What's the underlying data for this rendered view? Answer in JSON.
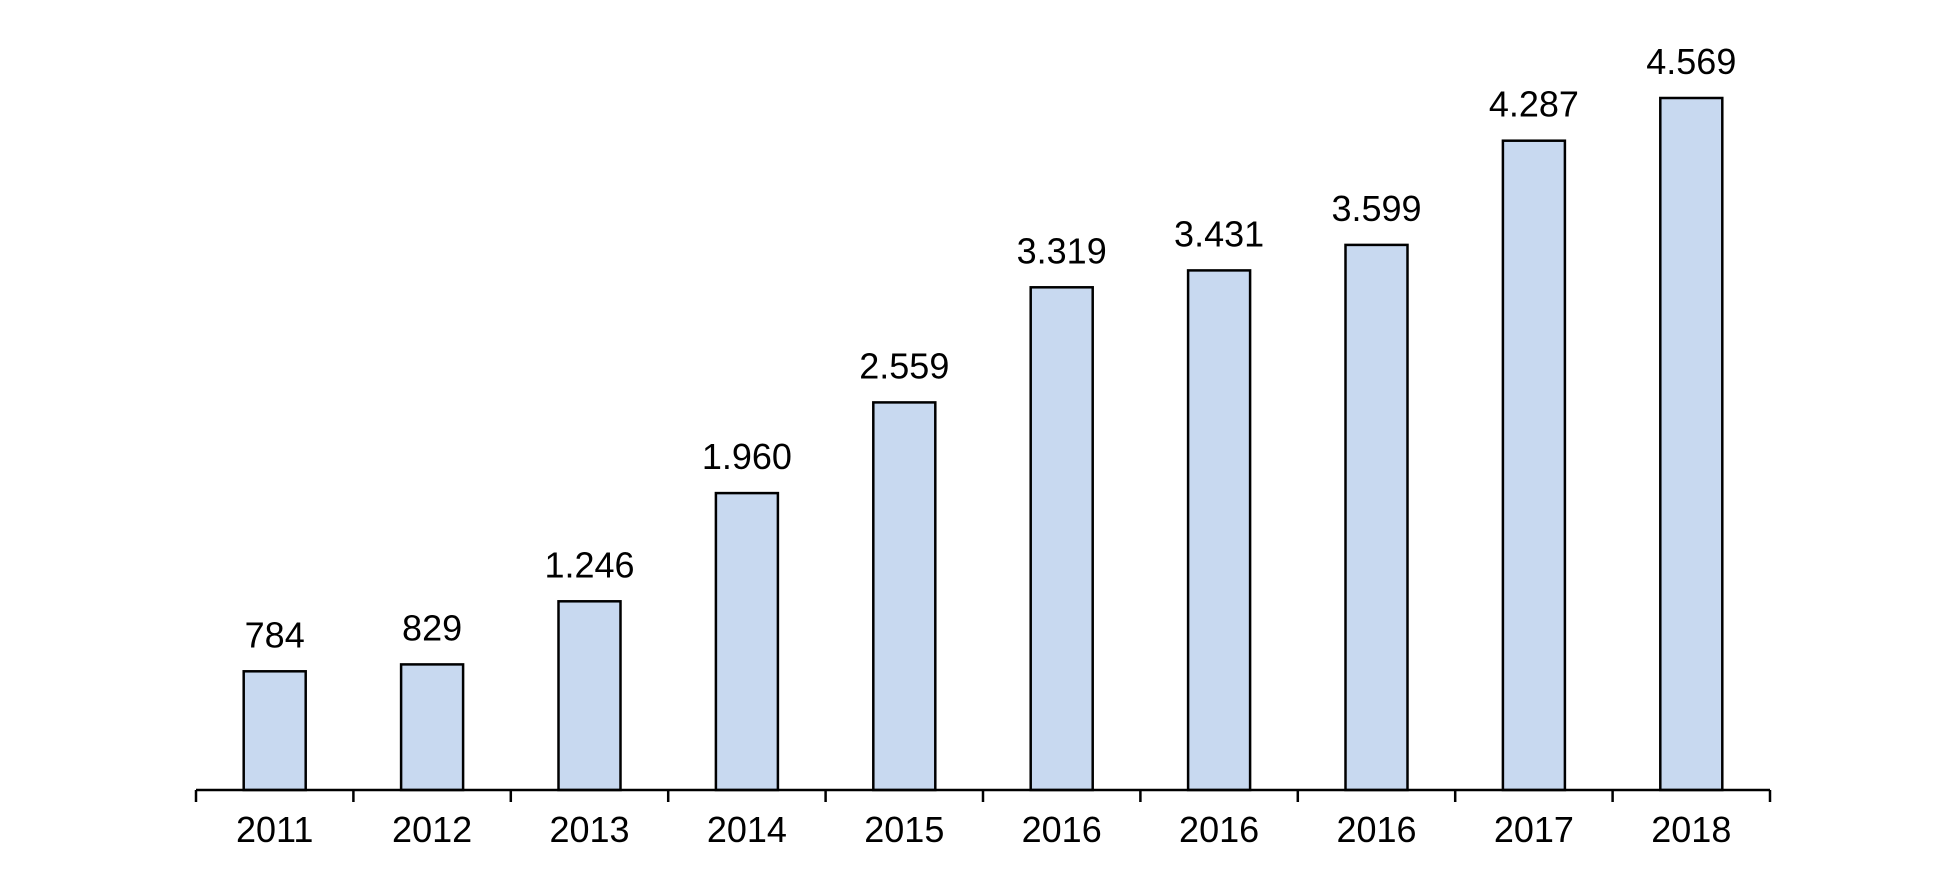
{
  "chart_data": {
    "type": "bar",
    "title": "",
    "xlabel": "",
    "ylabel": "",
    "categories": [
      "2011",
      "2012",
      "2013",
      "2014",
      "2015",
      "2016",
      "2016",
      "2016",
      "2017",
      "2018"
    ],
    "values": [
      784,
      829,
      1246,
      1960,
      2559,
      3319,
      3431,
      3599,
      4287,
      4569
    ],
    "data_labels": [
      "784",
      "829",
      "1.246",
      "1.960",
      "2.559",
      "3.319",
      "3.431",
      "3.599",
      "4.287",
      "4.569"
    ],
    "ylim": [
      0,
      4569
    ],
    "grid": false,
    "legend": "none",
    "colors": {
      "bar_fill": "#c8d9f0",
      "bar_stroke": "#000000",
      "axis": "#000000",
      "text": "#000000"
    }
  }
}
